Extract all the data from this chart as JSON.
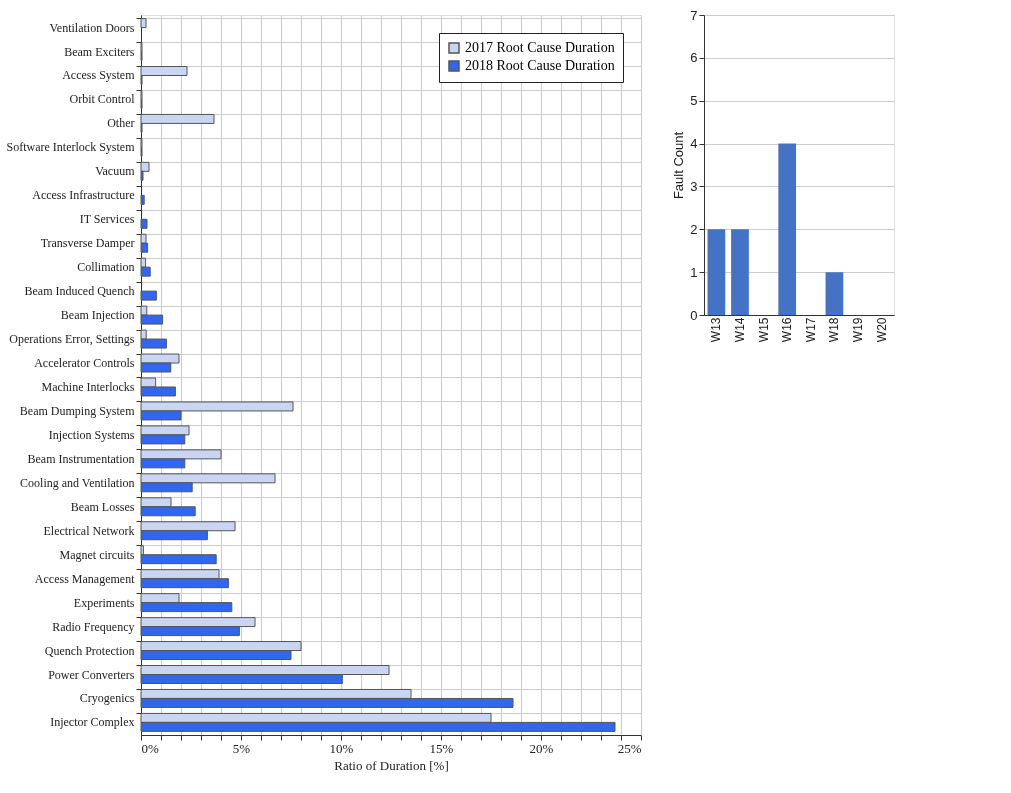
{
  "chart_data": [
    {
      "type": "bar",
      "orientation": "horizontal",
      "xlabel": "Ratio of Duration [%]",
      "categories": [
        "Ventilation Doors",
        "Beam Exciters",
        "Access System",
        "Orbit Control",
        "Other",
        "Software Interlock System",
        "Vacuum",
        "Access Infrastructure",
        "IT Services",
        "Transverse Damper",
        "Collimation",
        "Beam Induced Quench",
        "Beam Injection",
        "Operations Error, Settings",
        "Accelerator Controls",
        "Machine Interlocks",
        "Beam Dumping System",
        "Injection Systems",
        "Beam Instrumentation",
        "Cooling and Ventilation",
        "Beam Losses",
        "Electrical Network",
        "Magnet circuits",
        "Access Management",
        "Experiments",
        "Radio Frequency",
        "Quench Protection",
        "Power Converters",
        "Cryogenics",
        "Injector Complex"
      ],
      "series": [
        {
          "name": "2017 Root Cause Duration",
          "color": "#c9d5f2",
          "values": [
            0.25,
            0.05,
            2.3,
            0.05,
            3.65,
            0.05,
            0.4,
            null,
            null,
            0.25,
            0.23,
            null,
            0.29,
            0.26,
            1.9,
            0.73,
            7.6,
            2.4,
            4.0,
            6.7,
            1.5,
            4.7,
            0.12,
            3.9,
            1.9,
            5.7,
            8.0,
            12.4,
            13.5,
            17.5
          ]
        },
        {
          "name": "2018 Root Cause Duration",
          "color": "#3366ee",
          "values": [
            null,
            0.05,
            0.05,
            0.05,
            0.05,
            0.05,
            0.1,
            0.16,
            0.3,
            0.33,
            0.46,
            0.77,
            1.08,
            1.27,
            1.49,
            1.72,
            2.0,
            2.19,
            2.19,
            2.56,
            2.71,
            3.32,
            3.76,
            4.37,
            4.54,
            4.92,
            7.5,
            10.07,
            18.6,
            23.7
          ]
        }
      ],
      "xlim": [
        0,
        25
      ],
      "xticks": [
        {
          "value": 0,
          "label": "0%"
        },
        {
          "value": 1,
          "label": null
        },
        {
          "value": 2,
          "label": null
        },
        {
          "value": 3,
          "label": null
        },
        {
          "value": 4,
          "label": null
        },
        {
          "value": 5,
          "label": "5%"
        },
        {
          "value": 6,
          "label": null
        },
        {
          "value": 7,
          "label": null
        },
        {
          "value": 8,
          "label": null
        },
        {
          "value": 9,
          "label": null
        },
        {
          "value": 10,
          "label": "10%"
        },
        {
          "value": 11,
          "label": null
        },
        {
          "value": 12,
          "label": null
        },
        {
          "value": 13,
          "label": null
        },
        {
          "value": 14,
          "label": null
        },
        {
          "value": 15,
          "label": "15%"
        },
        {
          "value": 16,
          "label": null
        },
        {
          "value": 17,
          "label": null
        },
        {
          "value": 18,
          "label": null
        },
        {
          "value": 19,
          "label": null
        },
        {
          "value": 20,
          "label": "20%"
        },
        {
          "value": 21,
          "label": null
        },
        {
          "value": 22,
          "label": null
        },
        {
          "value": 23,
          "label": null
        },
        {
          "value": 24,
          "label": null
        },
        {
          "value": 25,
          "label": "25%"
        }
      ],
      "grid": true,
      "legend": "top right"
    },
    {
      "type": "bar",
      "ylabel": "Fault Count",
      "categories": [
        "W13",
        "W14",
        "W15",
        "W16",
        "W17",
        "W18",
        "W19",
        "W20"
      ],
      "values": [
        2,
        2,
        0,
        4,
        0,
        1,
        0,
        0
      ],
      "color": "#4472c4",
      "ylim": [
        0,
        7
      ],
      "yticks": [
        0,
        1,
        2,
        3,
        4,
        5,
        6,
        7
      ],
      "grid": "y"
    }
  ]
}
